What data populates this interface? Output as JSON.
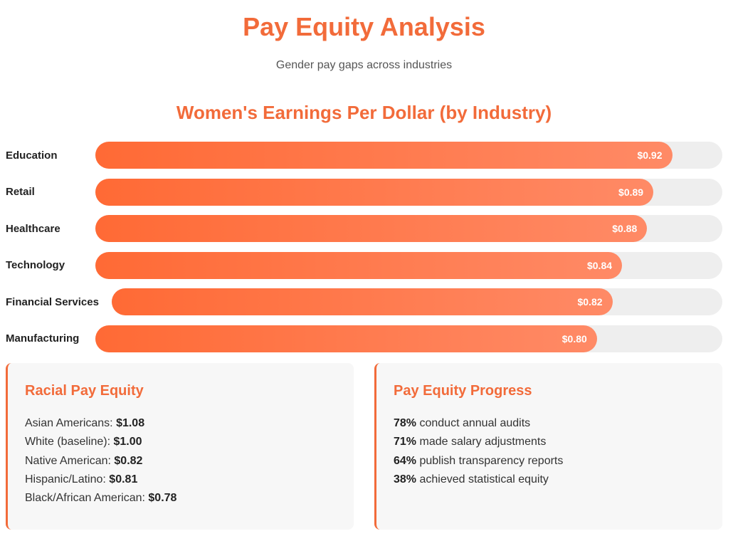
{
  "header": {
    "title": "Pay Equity Analysis",
    "subtitle": "Gender pay gaps across industries"
  },
  "chart_data": {
    "type": "bar",
    "orientation": "horizontal",
    "title": "Women's Earnings Per Dollar (by Industry)",
    "categories": [
      "Education",
      "Retail",
      "Healthcare",
      "Technology",
      "Financial Services",
      "Manufacturing"
    ],
    "values": [
      0.92,
      0.89,
      0.88,
      0.84,
      0.82,
      0.8
    ],
    "value_labels": [
      "$0.92",
      "$0.89",
      "$0.88",
      "$0.84",
      "$0.82",
      "$0.80"
    ],
    "xlim": [
      0,
      1
    ],
    "color": [
      "#ff6a35",
      "#ff8a66"
    ],
    "track_color": "#eeeeee"
  },
  "cards": [
    {
      "title": "Racial Pay Equity",
      "items": [
        {
          "label": "Asian Americans:",
          "value": "$1.08"
        },
        {
          "label": "White (baseline):",
          "value": "$1.00"
        },
        {
          "label": "Native American:",
          "value": "$0.82"
        },
        {
          "label": "Hispanic/Latino:",
          "value": "$0.81"
        },
        {
          "label": "Black/African American:",
          "value": "$0.78"
        }
      ]
    },
    {
      "title": "Pay Equity Progress",
      "items": [
        {
          "value": "78%",
          "label": "conduct annual audits"
        },
        {
          "value": "71%",
          "label": "made salary adjustments"
        },
        {
          "value": "64%",
          "label": "publish transparency reports"
        },
        {
          "value": "38%",
          "label": "achieved statistical equity"
        }
      ]
    }
  ]
}
